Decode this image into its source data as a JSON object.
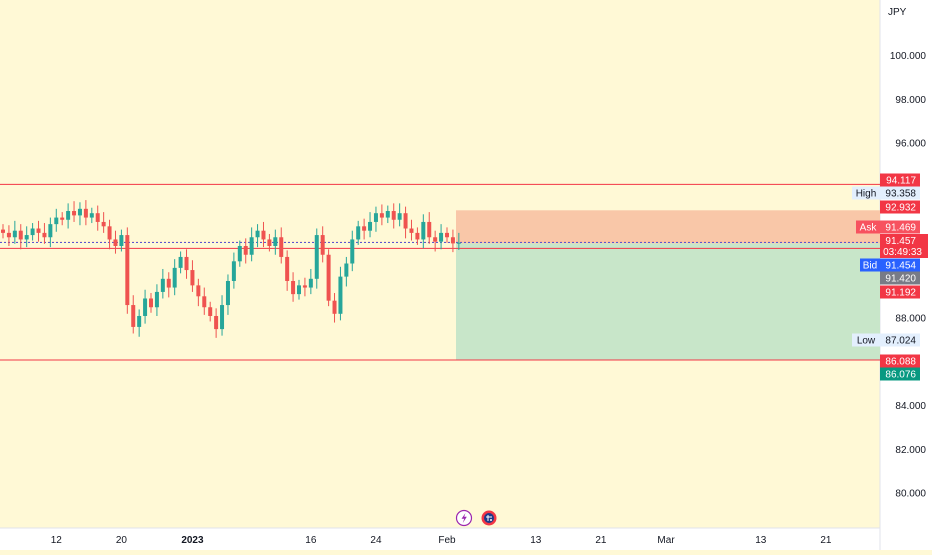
{
  "currency": "JPY",
  "colors": {
    "background": "#fff9d6",
    "axis_background": "#ffffff",
    "up": "#26a69a",
    "down": "#ef5350",
    "line_red": "#f23645",
    "ask_label": "#f7525f",
    "bid_label": "#2962ff",
    "gray_label": "#787b86",
    "green_label": "#089981",
    "stop_zone": "#f9c7a8",
    "profit_zone": "#c8e6c9",
    "grid_text": "#131722"
  },
  "icons": [
    "lightning-icon",
    "flag-icon"
  ],
  "chart_data": {
    "type": "candlestick",
    "ylim": [
      79.0,
      102.0
    ],
    "y_ticks": [
      {
        "value": 100.0,
        "label": "100.000"
      },
      {
        "value": 98.0,
        "label": "98.000"
      },
      {
        "value": 96.0,
        "label": "96.000"
      },
      {
        "value": 88.0,
        "label": "88.000"
      },
      {
        "value": 84.0,
        "label": "84.000"
      },
      {
        "value": 82.0,
        "label": "82.000"
      },
      {
        "value": 80.0,
        "label": "80.000"
      }
    ],
    "x_ticks": [
      {
        "label": "12",
        "index": 9
      },
      {
        "label": "20",
        "index": 20,
        "bold": false
      },
      {
        "label": "2023",
        "index": 32,
        "bold": true
      },
      {
        "label": "16",
        "index": 52
      },
      {
        "label": "24",
        "index": 63
      },
      {
        "label": "Feb",
        "index": 75
      },
      {
        "label": "13",
        "index": 90
      },
      {
        "label": "21",
        "index": 101
      },
      {
        "label": "Mar",
        "index": 112
      },
      {
        "label": "13",
        "index": 128
      },
      {
        "label": "21",
        "index": 139
      }
    ],
    "candle_count": 78,
    "closes": [
      91.9,
      91.7,
      92.0,
      91.6,
      91.8,
      92.1,
      91.9,
      91.7,
      92.3,
      92.6,
      92.5,
      92.9,
      92.7,
      93.0,
      92.6,
      92.8,
      92.4,
      92.2,
      91.6,
      91.3,
      91.8,
      88.6,
      87.6,
      88.1,
      88.9,
      88.5,
      89.2,
      89.8,
      89.4,
      90.3,
      90.8,
      90.2,
      89.5,
      89.0,
      88.5,
      88.1,
      87.5,
      88.6,
      89.7,
      90.6,
      91.3,
      90.9,
      91.7,
      92.0,
      91.6,
      91.3,
      91.7,
      90.8,
      89.7,
      89.1,
      89.5,
      89.4,
      89.8,
      91.8,
      90.9,
      88.8,
      88.2,
      89.9,
      90.5,
      91.6,
      92.2,
      92.0,
      92.4,
      92.8,
      92.6,
      92.9,
      92.5,
      92.8,
      92.1,
      91.9,
      91.6,
      92.4,
      91.7,
      91.5,
      91.9,
      91.7,
      91.42,
      91.45
    ],
    "levels": {
      "high_line": {
        "value": 94.117,
        "label": "94.117"
      },
      "high_marker": {
        "label": "High",
        "value_label": "93.358"
      },
      "stop_top": {
        "value": 92.932,
        "label": "92.932"
      },
      "ask": {
        "label": "Ask",
        "value_label": "91.469"
      },
      "last": {
        "value_label": "91.457",
        "countdown": "03:49:33"
      },
      "bid": {
        "label": "Bid",
        "value_label": "91.454"
      },
      "entry": {
        "value": 91.42,
        "label": "91.420"
      },
      "red_line": {
        "value": 91.192,
        "label": "91.192"
      },
      "low_marker": {
        "label": "Low",
        "value_label": "87.024"
      },
      "target_top": {
        "value": 86.088,
        "label": "86.088"
      },
      "target_bottom": {
        "value": 86.076,
        "label": "86.076"
      }
    }
  }
}
